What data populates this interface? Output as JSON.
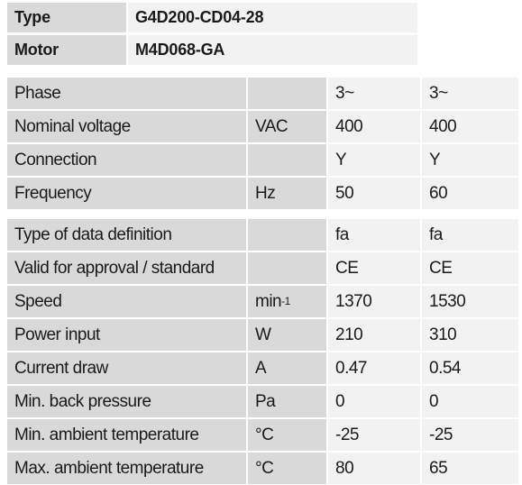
{
  "header": {
    "rows": [
      {
        "label": "Type",
        "value": "G4D200-CD04-28"
      },
      {
        "label": "Motor",
        "value": "M4D068-GA"
      }
    ]
  },
  "groups": [
    {
      "rows": [
        {
          "label": "Phase",
          "unit": "",
          "values": [
            "3~",
            "3~"
          ]
        },
        {
          "label": "Nominal voltage",
          "unit": "VAC",
          "values": [
            "400",
            "400"
          ]
        },
        {
          "label": "Connection",
          "unit": "",
          "values": [
            "Y",
            "Y"
          ]
        },
        {
          "label": "Frequency",
          "unit": "Hz",
          "values": [
            "50",
            "60"
          ]
        }
      ]
    },
    {
      "rows": [
        {
          "label": "Type of data definition",
          "unit": "",
          "values": [
            "fa",
            "fa"
          ]
        },
        {
          "label": "Valid for approval / standard",
          "unit": "",
          "values": [
            "CE",
            "CE"
          ]
        },
        {
          "label": "Speed",
          "unit": "min",
          "unit_sup": "-1",
          "values": [
            "1370",
            "1530"
          ]
        },
        {
          "label": "Power input",
          "unit": "W",
          "values": [
            "210",
            "310"
          ]
        },
        {
          "label": "Current draw",
          "unit": "A",
          "values": [
            "0.47",
            "0.54"
          ]
        },
        {
          "label": "Min. back pressure",
          "unit": "Pa",
          "values": [
            "0",
            "0"
          ]
        },
        {
          "label": "Min. ambient temperature",
          "unit": "°C",
          "values": [
            "-25",
            "-25"
          ]
        },
        {
          "label": "Max. ambient temperature",
          "unit": "°C",
          "values": [
            "80",
            "65"
          ]
        }
      ]
    }
  ]
}
